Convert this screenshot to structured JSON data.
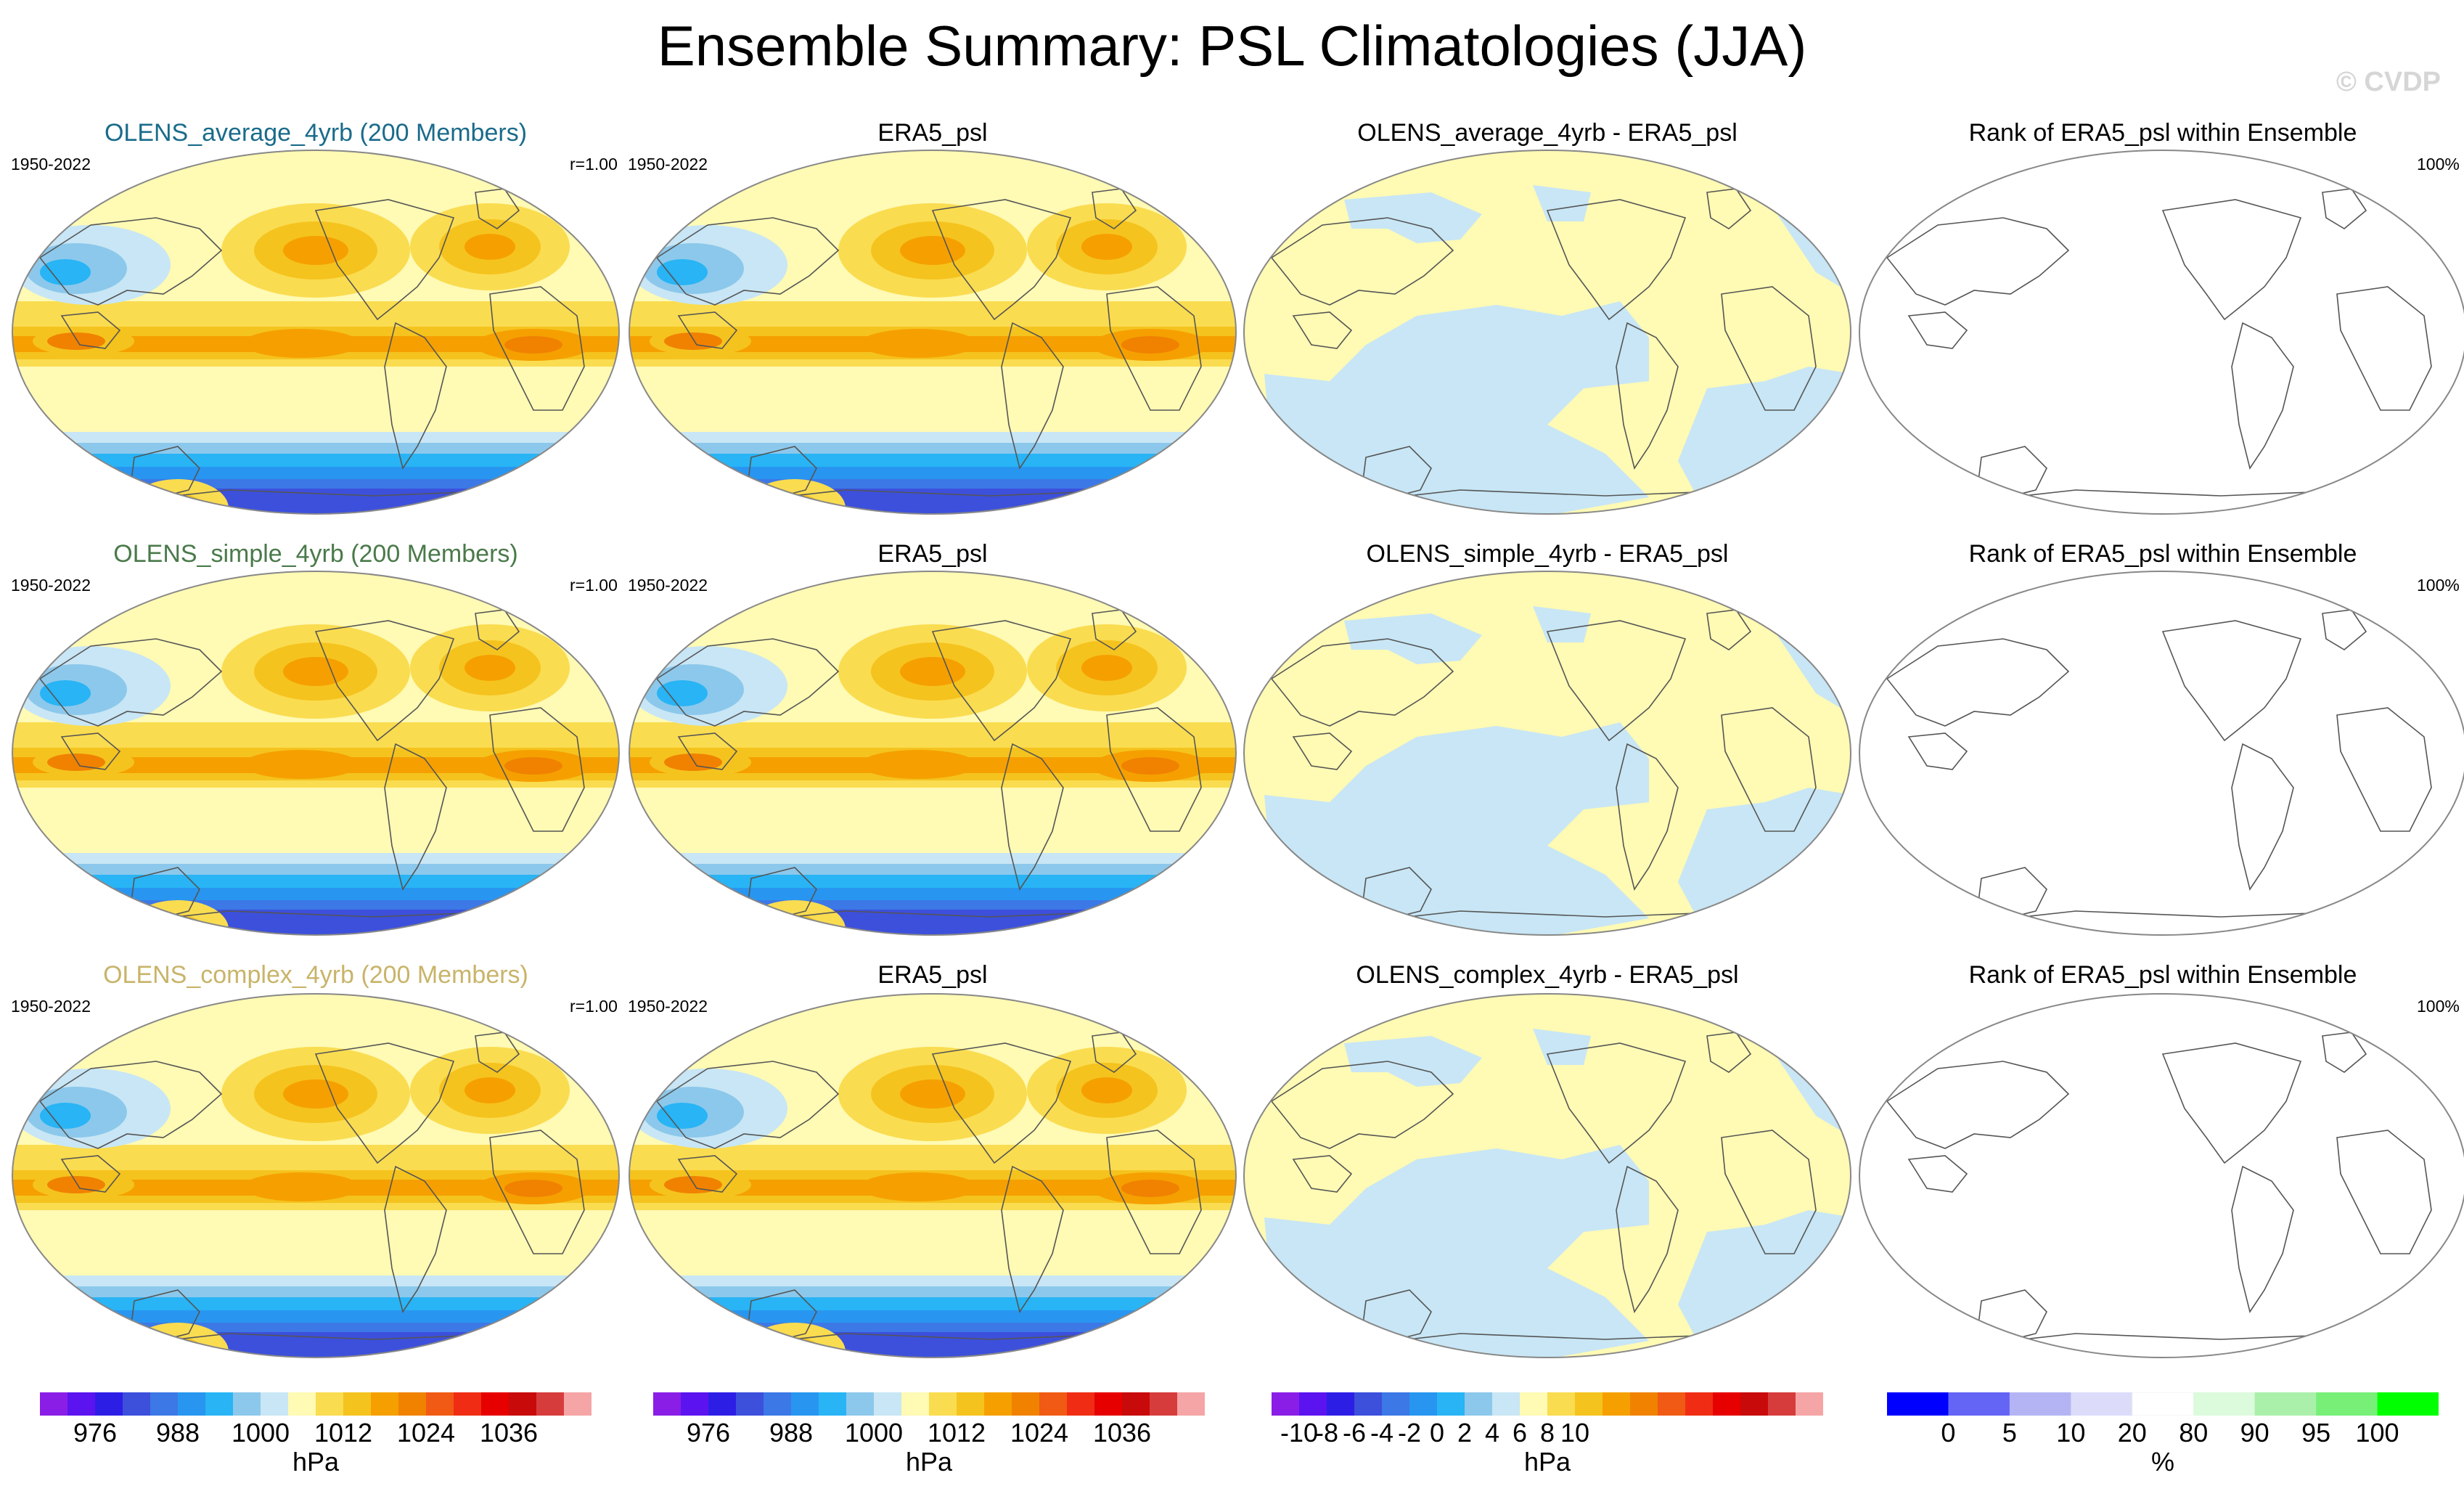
{
  "figure": {
    "title": "Ensemble Summary: PSL Climatologies (JJA)",
    "watermark": "© CVDP"
  },
  "chart_data": [
    {
      "type": "heatmap",
      "row": 0,
      "col": 0,
      "kind": "psl",
      "title": "OLENS_average_4yrb (200 Members)",
      "title_color": "#1a6b8a",
      "left_label": "1950-2022",
      "right_label": "r=1.00",
      "units": "hPa"
    },
    {
      "type": "heatmap",
      "row": 0,
      "col": 1,
      "kind": "psl",
      "title": "ERA5_psl",
      "title_color": "#000000",
      "left_label": "1950-2022",
      "right_label": "",
      "units": "hPa"
    },
    {
      "type": "heatmap",
      "row": 0,
      "col": 2,
      "kind": "diff",
      "title": "OLENS_average_4yrb - ERA5_psl",
      "title_color": "#000000",
      "left_label": "",
      "right_label": "",
      "units": "hPa"
    },
    {
      "type": "heatmap",
      "row": 0,
      "col": 3,
      "kind": "rank",
      "title": "Rank of ERA5_psl within Ensemble",
      "title_color": "#000000",
      "left_label": "",
      "right_label": "100%",
      "units": "%"
    },
    {
      "type": "heatmap",
      "row": 1,
      "col": 0,
      "kind": "psl",
      "title": "OLENS_simple_4yrb (200 Members)",
      "title_color": "#4a7a4a",
      "left_label": "1950-2022",
      "right_label": "r=1.00",
      "units": "hPa"
    },
    {
      "type": "heatmap",
      "row": 1,
      "col": 1,
      "kind": "psl",
      "title": "ERA5_psl",
      "title_color": "#000000",
      "left_label": "1950-2022",
      "right_label": "",
      "units": "hPa"
    },
    {
      "type": "heatmap",
      "row": 1,
      "col": 2,
      "kind": "diff",
      "title": "OLENS_simple_4yrb - ERA5_psl",
      "title_color": "#000000",
      "left_label": "",
      "right_label": "",
      "units": "hPa"
    },
    {
      "type": "heatmap",
      "row": 1,
      "col": 3,
      "kind": "rank",
      "title": "Rank of ERA5_psl within Ensemble",
      "title_color": "#000000",
      "left_label": "",
      "right_label": "100%",
      "units": "%"
    },
    {
      "type": "heatmap",
      "row": 2,
      "col": 0,
      "kind": "psl",
      "title": "OLENS_complex_4yrb (200 Members)",
      "title_color": "#c8b46a",
      "left_label": "1950-2022",
      "right_label": "r=1.00",
      "units": "hPa"
    },
    {
      "type": "heatmap",
      "row": 2,
      "col": 1,
      "kind": "psl",
      "title": "ERA5_psl",
      "title_color": "#000000",
      "left_label": "1950-2022",
      "right_label": "",
      "units": "hPa"
    },
    {
      "type": "heatmap",
      "row": 2,
      "col": 2,
      "kind": "diff",
      "title": "OLENS_complex_4yrb - ERA5_psl",
      "title_color": "#000000",
      "left_label": "",
      "right_label": "",
      "units": "hPa"
    },
    {
      "type": "heatmap",
      "row": 2,
      "col": 3,
      "kind": "rank",
      "title": "Rank of ERA5_psl within Ensemble",
      "title_color": "#000000",
      "left_label": "",
      "right_label": "100%",
      "units": "%"
    }
  ],
  "colorbars": [
    {
      "units": "hPa",
      "colors": [
        "#8a1ee6",
        "#5b14f0",
        "#2d1ee6",
        "#3c50dc",
        "#3c78e6",
        "#2896f0",
        "#28b4f5",
        "#8cc8eb",
        "#c8e6f5",
        "#fffab4",
        "#fadc50",
        "#f5c31e",
        "#f5a000",
        "#f08200",
        "#f05a14",
        "#f02d14",
        "#e60000",
        "#c80a0a",
        "#d73c3c",
        "#f5a5a5"
      ],
      "ticks": [
        "976",
        "988",
        "1000",
        "1012",
        "1024",
        "1036"
      ],
      "tick_boundaries": [
        2,
        5,
        8,
        11,
        14,
        17
      ]
    },
    {
      "units": "hPa",
      "colors": [
        "#8a1ee6",
        "#5b14f0",
        "#2d1ee6",
        "#3c50dc",
        "#3c78e6",
        "#2896f0",
        "#28b4f5",
        "#8cc8eb",
        "#c8e6f5",
        "#fffab4",
        "#fadc50",
        "#f5c31e",
        "#f5a000",
        "#f08200",
        "#f05a14",
        "#f02d14",
        "#e60000",
        "#c80a0a",
        "#d73c3c",
        "#f5a5a5"
      ],
      "ticks": [
        "976",
        "988",
        "1000",
        "1012",
        "1024",
        "1036"
      ],
      "tick_boundaries": [
        2,
        5,
        8,
        11,
        14,
        17
      ]
    },
    {
      "units": "hPa",
      "colors": [
        "#8a1ee6",
        "#5b14f0",
        "#2d1ee6",
        "#3c50dc",
        "#3c78e6",
        "#2896f0",
        "#28b4f5",
        "#8cc8eb",
        "#c8e6f5",
        "#fffab4",
        "#fadc50",
        "#f5c31e",
        "#f5a000",
        "#f08200",
        "#f05a14",
        "#f02d14",
        "#e60000",
        "#c80a0a",
        "#d73c3c",
        "#f5a5a5"
      ],
      "ticks": [
        "-10",
        "-8",
        "-6",
        "-4",
        "-2",
        "0",
        "2",
        "4",
        "6",
        "8",
        "10"
      ],
      "tick_boundaries": [
        1,
        2,
        3,
        4,
        5,
        6,
        7,
        8,
        9,
        10,
        11
      ]
    },
    {
      "units": "%",
      "colors": [
        "#0000ff",
        "#6464f5",
        "#b4b4f5",
        "#dcdcfa",
        "#ffffff",
        "#dcfadc",
        "#aaf0aa",
        "#78f078",
        "#00ff00"
      ],
      "ticks": [
        "0",
        "5",
        "10",
        "20",
        "80",
        "90",
        "95",
        "100"
      ],
      "tick_boundaries": [
        1,
        2,
        3,
        4,
        5,
        6,
        7,
        8
      ]
    }
  ]
}
